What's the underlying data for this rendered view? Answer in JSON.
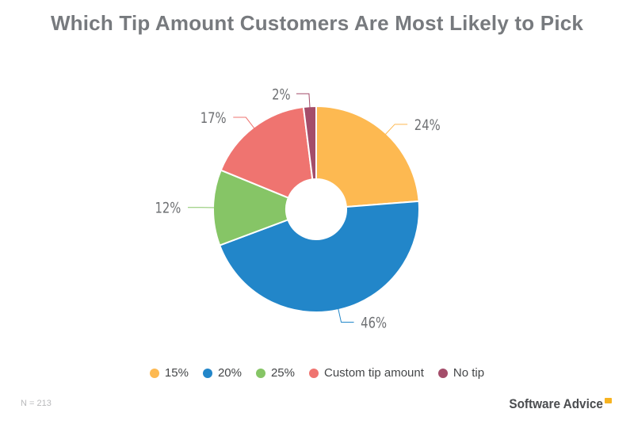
{
  "title": "Which Tip Amount Customers Are Most Likely to Pick",
  "chart_data": {
    "type": "pie",
    "title": "Which Tip Amount Customers Are Most Likely to Pick",
    "categories": [
      "15%",
      "20%",
      "25%",
      "Custom tip amount",
      "No tip"
    ],
    "values": [
      24,
      46,
      12,
      17,
      2
    ],
    "value_labels": [
      "24%",
      "46%",
      "12%",
      "17%",
      "2%"
    ],
    "colors": [
      "#fdb951",
      "#2286c9",
      "#86c566",
      "#ef7470",
      "#a44d6a"
    ],
    "donut": true,
    "legend_position": "bottom",
    "sample_note": "N = 213"
  },
  "legend": [
    {
      "label": "15%",
      "color": "#fdb951"
    },
    {
      "label": "20%",
      "color": "#2286c9"
    },
    {
      "label": "25%",
      "color": "#86c566"
    },
    {
      "label": "Custom tip amount",
      "color": "#ef7470"
    },
    {
      "label": "No tip",
      "color": "#a44d6a"
    }
  ],
  "footer": {
    "sample_size": "N = 213",
    "brand": "Software Advice"
  }
}
